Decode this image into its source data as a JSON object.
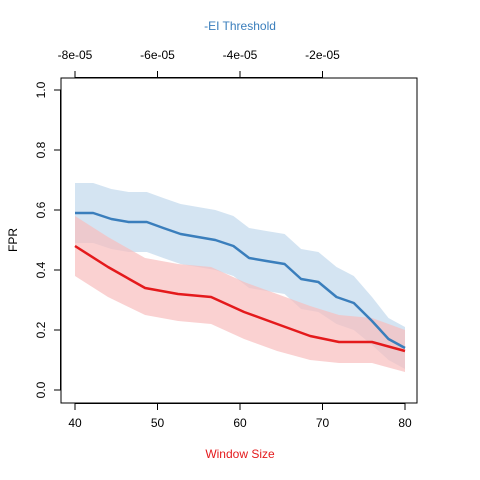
{
  "chart_data": {
    "type": "line",
    "xlabel": "Window Size",
    "x2label": "-EI Threshold",
    "ylabel": "FPR",
    "xlim": [
      40,
      80
    ],
    "ylim": [
      0,
      1
    ],
    "x_ticks": [
      40,
      50,
      60,
      70,
      80
    ],
    "x_tick_labels": [
      "40",
      "50",
      "60",
      "70",
      "80"
    ],
    "y_ticks": [
      0,
      0.2,
      0.4,
      0.6,
      0.8,
      1
    ],
    "y_tick_labels": [
      "0.0",
      "0.2",
      "0.4",
      "0.6",
      "0.8",
      "1.0"
    ],
    "top_ticks_x": [
      -8e-05,
      -6e-05,
      -4e-05,
      -2e-05
    ],
    "top_tick_labels": [
      "-8e-05",
      "-6e-05",
      "-4e-05",
      "-2e-05"
    ],
    "top_xlim": [
      -8e-05,
      0
    ],
    "grid": false,
    "series": [
      {
        "color": "#3a7ebc",
        "band_color": "#c6dbee",
        "x": [
          40,
          42.2,
          44.4,
          46.5,
          48.7,
          50.7,
          52.8,
          54.9,
          57,
          59.2,
          61.1,
          63.2,
          65.4,
          67.4,
          69.5,
          71.7,
          73.8,
          76,
          78,
          80
        ],
        "values": [
          0.59,
          0.59,
          0.57,
          0.56,
          0.56,
          0.54,
          0.52,
          0.51,
          0.5,
          0.48,
          0.44,
          0.43,
          0.42,
          0.37,
          0.36,
          0.31,
          0.29,
          0.23,
          0.17,
          0.14
        ],
        "upper": [
          0.69,
          0.69,
          0.67,
          0.66,
          0.66,
          0.64,
          0.62,
          0.61,
          0.6,
          0.58,
          0.54,
          0.53,
          0.52,
          0.47,
          0.46,
          0.41,
          0.38,
          0.31,
          0.24,
          0.21
        ],
        "lower": [
          0.49,
          0.49,
          0.47,
          0.46,
          0.46,
          0.44,
          0.42,
          0.41,
          0.4,
          0.38,
          0.34,
          0.33,
          0.32,
          0.27,
          0.26,
          0.22,
          0.2,
          0.15,
          0.1,
          0.07
        ]
      },
      {
        "color": "#e41a1c",
        "band_color": "#f8bdbd",
        "x": [
          40,
          44,
          48.5,
          52.5,
          56.5,
          60.5,
          64.5,
          68.5,
          72,
          76,
          80
        ],
        "values": [
          0.48,
          0.41,
          0.34,
          0.32,
          0.31,
          0.26,
          0.22,
          0.18,
          0.16,
          0.16,
          0.13
        ],
        "upper": [
          0.58,
          0.51,
          0.44,
          0.42,
          0.41,
          0.36,
          0.32,
          0.28,
          0.25,
          0.24,
          0.2
        ],
        "lower": [
          0.38,
          0.31,
          0.25,
          0.23,
          0.22,
          0.17,
          0.13,
          0.1,
          0.09,
          0.09,
          0.06
        ]
      }
    ]
  }
}
